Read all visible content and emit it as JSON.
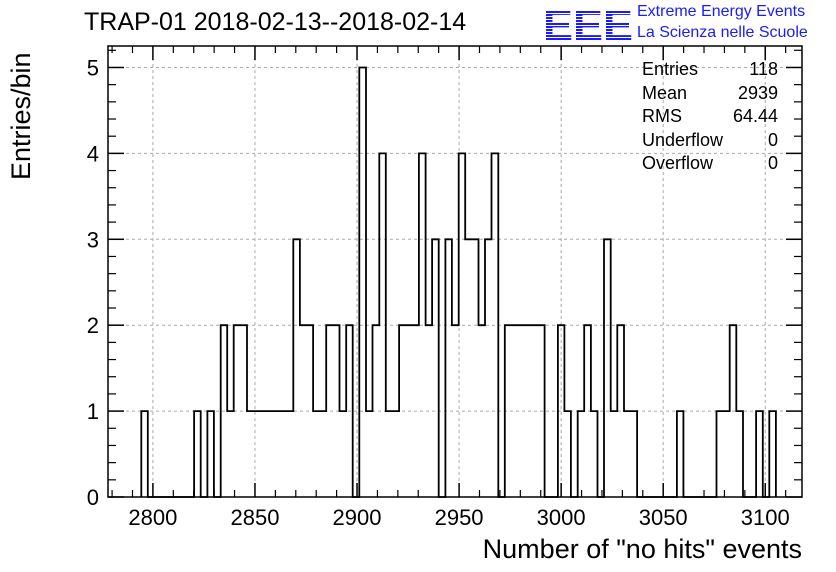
{
  "title": "TRAP-01 2018-02-13--2018-02-14",
  "logo": {
    "mark": "EEE",
    "line1": "Extreme Energy Events",
    "line2": "La Scienza nelle Scuole",
    "color": "#1a1aff"
  },
  "stats": [
    {
      "label": "Entries",
      "value": "118"
    },
    {
      "label": "Mean",
      "value": "2939"
    },
    {
      "label": "RMS",
      "value": "64.44"
    },
    {
      "label": "Underflow",
      "value": "0"
    },
    {
      "label": "Overflow",
      "value": "0"
    }
  ],
  "chart_data": {
    "type": "bar",
    "style": "step-histogram",
    "title": "TRAP-01 2018-02-13--2018-02-14",
    "xlabel": "Number of \"no hits\" events",
    "ylabel": "Entries/bin",
    "xlim": [
      2778,
      3118
    ],
    "ylim": [
      0,
      5.25
    ],
    "bin_width": 3.24,
    "grid": true,
    "x_ticks": [
      2800,
      2850,
      2900,
      2950,
      3000,
      3050,
      3100
    ],
    "y_ticks": [
      0,
      1,
      2,
      3,
      4,
      5
    ],
    "bins": [
      [
        2794.3,
        1
      ],
      [
        2797.5,
        0
      ],
      [
        2820.2,
        1
      ],
      [
        2823.4,
        0
      ],
      [
        2826.7,
        1
      ],
      [
        2829.9,
        0
      ],
      [
        2833.2,
        2
      ],
      [
        2836.4,
        1
      ],
      [
        2839.6,
        2
      ],
      [
        2846.1,
        1
      ],
      [
        2868.8,
        3
      ],
      [
        2872.0,
        2
      ],
      [
        2878.5,
        1
      ],
      [
        2884.9,
        2
      ],
      [
        2891.4,
        1
      ],
      [
        2894.7,
        2
      ],
      [
        2897.9,
        0
      ],
      [
        2901.1,
        5
      ],
      [
        2904.4,
        1
      ],
      [
        2907.6,
        2
      ],
      [
        2910.9,
        4
      ],
      [
        2914.1,
        1
      ],
      [
        2920.6,
        2
      ],
      [
        2930.3,
        4
      ],
      [
        2933.6,
        2
      ],
      [
        2936.8,
        3
      ],
      [
        2940.0,
        0
      ],
      [
        2943.3,
        3
      ],
      [
        2946.5,
        2
      ],
      [
        2949.8,
        4
      ],
      [
        2953.0,
        3
      ],
      [
        2959.5,
        2
      ],
      [
        2962.7,
        3
      ],
      [
        2965.9,
        4
      ],
      [
        2969.2,
        0
      ],
      [
        2972.4,
        2
      ],
      [
        2991.9,
        0
      ],
      [
        2998.4,
        2
      ],
      [
        3001.6,
        1
      ],
      [
        3004.8,
        0
      ],
      [
        3008.1,
        1
      ],
      [
        3011.3,
        2
      ],
      [
        3014.6,
        1
      ],
      [
        3017.8,
        0
      ],
      [
        3021.0,
        3
      ],
      [
        3024.3,
        1
      ],
      [
        3027.5,
        2
      ],
      [
        3030.8,
        1
      ],
      [
        3037.2,
        0
      ],
      [
        3056.7,
        1
      ],
      [
        3059.9,
        0
      ],
      [
        3076.1,
        1
      ],
      [
        3082.6,
        2
      ],
      [
        3085.8,
        1
      ],
      [
        3089.1,
        0
      ],
      [
        3095.5,
        1
      ],
      [
        3098.8,
        0
      ],
      [
        3102.0,
        1
      ],
      [
        3105.2,
        0
      ]
    ],
    "line_color": "#000000",
    "grid_color": "#aaaaaa"
  }
}
